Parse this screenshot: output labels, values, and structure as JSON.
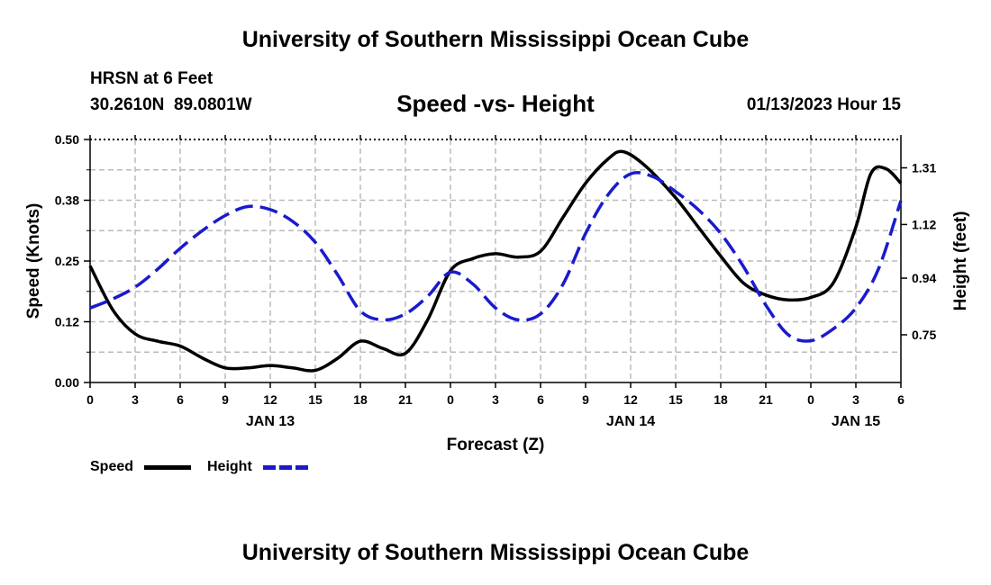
{
  "header": {
    "title": "University of Southern Mississippi Ocean Cube",
    "station": "HRSN at 6 Feet",
    "coords": "30.2610N  89.0801W",
    "chart_title": "Speed -vs- Height",
    "datetime": "01/13/2023 Hour 15",
    "footer_title": "University of Southern Mississippi Ocean Cube"
  },
  "legend": {
    "speed_label": "Speed",
    "height_label": "Height"
  },
  "colors": {
    "speed": "#000000",
    "height": "#1a1acc",
    "grid": "#bbbbbb"
  },
  "chart_data": {
    "type": "line",
    "title": "Speed -vs- Height",
    "xlabel": "Forecast (Z)",
    "ylabel_left": "Speed (Knots)",
    "ylabel_right": "Height (feet)",
    "x_range_hours": [
      0,
      54
    ],
    "x_tick_hours": [
      0,
      3,
      6,
      9,
      12,
      15,
      18,
      21,
      24,
      27,
      30,
      33,
      36,
      39,
      42,
      45,
      48,
      51,
      54
    ],
    "x_tick_labels": [
      "0",
      "3",
      "6",
      "9",
      "12",
      "15",
      "18",
      "21",
      "0",
      "3",
      "6",
      "9",
      "12",
      "15",
      "18",
      "21",
      "0",
      "3",
      "6"
    ],
    "day_labels": [
      {
        "hour": 12,
        "label": "JAN 13"
      },
      {
        "hour": 36,
        "label": "JAN 14"
      },
      {
        "hour": 51,
        "label": "JAN 15"
      }
    ],
    "y_left_range": [
      0,
      0.5
    ],
    "y_left_ticks": [
      0,
      0.125,
      0.25,
      0.375,
      0.5
    ],
    "y_left_tick_labels": [
      "0.00",
      "0.12",
      "0.25",
      "0.38",
      "0.50"
    ],
    "y_right_range": [
      0.59,
      1.405
    ],
    "y_right_ticks": [
      0.75,
      0.94,
      1.12,
      1.31
    ],
    "y_right_tick_labels": [
      "0.75",
      "0.94",
      "1.12",
      "1.31"
    ],
    "grid": true,
    "series": [
      {
        "name": "Speed",
        "axis": "left",
        "style": "solid",
        "x": [
          0,
          1.5,
          3,
          4.5,
          6,
          7.5,
          9,
          10.5,
          12,
          13.5,
          15,
          16.5,
          18,
          19.5,
          21,
          22.5,
          24,
          25.5,
          27,
          28.5,
          30,
          31.5,
          33,
          34.5,
          35.5,
          37,
          39,
          40.5,
          42,
          43.5,
          45,
          46.5,
          48,
          49.5,
          51,
          52,
          53,
          54
        ],
        "values": [
          0.24,
          0.15,
          0.1,
          0.085,
          0.075,
          0.05,
          0.03,
          0.03,
          0.035,
          0.03,
          0.025,
          0.05,
          0.085,
          0.07,
          0.06,
          0.13,
          0.23,
          0.255,
          0.265,
          0.258,
          0.27,
          0.34,
          0.41,
          0.46,
          0.475,
          0.445,
          0.38,
          0.32,
          0.26,
          0.205,
          0.18,
          0.17,
          0.175,
          0.205,
          0.32,
          0.43,
          0.44,
          0.41
        ]
      },
      {
        "name": "Height",
        "axis": "right",
        "style": "dashed",
        "x": [
          0,
          1.5,
          3,
          4.5,
          6,
          7.5,
          9,
          10.5,
          12,
          13.5,
          15,
          16.5,
          18,
          19.5,
          21,
          22.5,
          24,
          25.5,
          27,
          28.5,
          30,
          31.5,
          33,
          34.5,
          36,
          37.5,
          39,
          40.5,
          42,
          43.5,
          45,
          46.5,
          48,
          49.5,
          51,
          52.5,
          54
        ],
        "values": [
          0.84,
          0.87,
          0.91,
          0.97,
          1.04,
          1.1,
          1.15,
          1.18,
          1.17,
          1.13,
          1.06,
          0.95,
          0.83,
          0.8,
          0.82,
          0.88,
          0.96,
          0.92,
          0.84,
          0.8,
          0.82,
          0.92,
          1.09,
          1.22,
          1.29,
          1.28,
          1.23,
          1.17,
          1.09,
          0.98,
          0.85,
          0.75,
          0.73,
          0.77,
          0.84,
          0.97,
          1.2
        ]
      }
    ]
  }
}
